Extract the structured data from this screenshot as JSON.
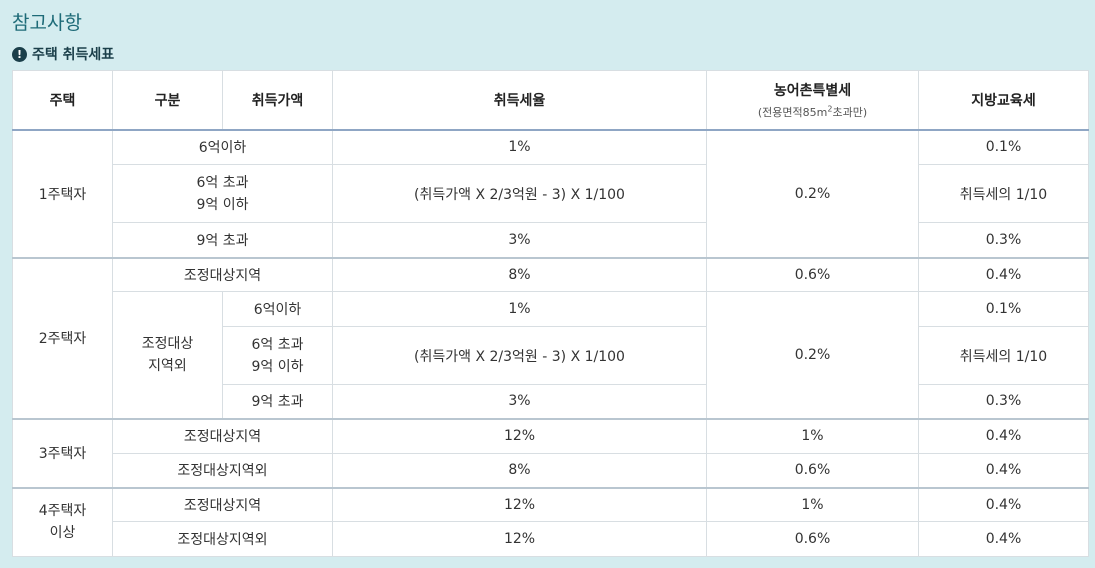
{
  "page": {
    "title": "참고사항",
    "subtitle": "주택 취득세표",
    "subtitle_icon": "exclamation-circle-icon"
  },
  "table": {
    "headers": {
      "house": "주택",
      "category": "구분",
      "price": "취득가액",
      "tax_rate": "취득세율",
      "rural_tax": "농어촌특별세",
      "rural_note_pre": "(전용면적85m",
      "rural_note_sup": "2",
      "rural_note_post": "초과만)",
      "edu_tax": "지방교육세"
    },
    "groups": [
      {
        "house": "1주택자",
        "rows": [
          {
            "category": "6억이하",
            "rate": "1%",
            "edu": "0.1%"
          },
          {
            "category_lines": [
              "6억 초과",
              "9억 이하"
            ],
            "rate": "(취득가액 X 2/3억원 - 3) X 1/100",
            "edu": "취득세의 1/10"
          },
          {
            "category": "9억 초과",
            "rate": "3%",
            "edu": "0.3%"
          }
        ],
        "rural": "0.2%"
      },
      {
        "house": "2주택자",
        "rows": [
          {
            "category": "조정대상지역",
            "rate": "8%",
            "rural": "0.6%",
            "edu": "0.4%"
          }
        ],
        "sub": {
          "label_lines": [
            "조정대상",
            "지역외"
          ],
          "rows": [
            {
              "price": "6억이하",
              "rate": "1%",
              "edu": "0.1%"
            },
            {
              "price_lines": [
                "6억 초과",
                "9억 이하"
              ],
              "rate": "(취득가액 X 2/3억원 - 3) X 1/100",
              "edu": "취득세의 1/10"
            },
            {
              "price": "9억 초과",
              "rate": "3%",
              "edu": "0.3%"
            }
          ],
          "rural": "0.2%"
        }
      },
      {
        "house": "3주택자",
        "rows": [
          {
            "category": "조정대상지역",
            "rate": "12%",
            "rural": "1%",
            "edu": "0.4%"
          },
          {
            "category": "조정대상지역외",
            "rate": "8%",
            "rural": "0.6%",
            "edu": "0.4%"
          }
        ]
      },
      {
        "house_lines": [
          "4주택자",
          "이상"
        ],
        "rows": [
          {
            "category": "조정대상지역",
            "rate": "12%",
            "rural": "1%",
            "edu": "0.4%"
          },
          {
            "category": "조정대상지역외",
            "rate": "12%",
            "rural": "0.6%",
            "edu": "0.4%"
          }
        ]
      }
    ]
  }
}
